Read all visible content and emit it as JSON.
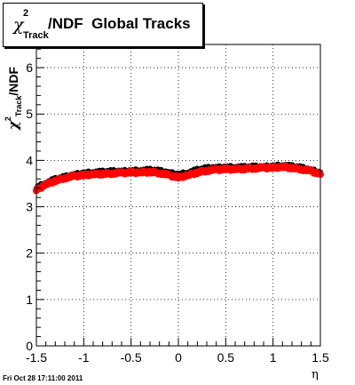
{
  "title": {
    "symbol": "χ",
    "sup": "2",
    "sub": "Track",
    "text": "/NDF  Global Tracks"
  },
  "ylabel": {
    "symbol": "χ",
    "sup": "2",
    "sub": "Track",
    "text": "/NDF"
  },
  "xlabel": "η",
  "timestamp": "Fri Oct 28 17:11:00 2011",
  "colors": {
    "series_red": "#ff0000",
    "series_black": "#000000",
    "grid": "#000000"
  },
  "chart_data": {
    "type": "scatter",
    "title": "χ²Track/NDF  Global Tracks",
    "xlabel": "η",
    "ylabel": "χ²Track/NDF",
    "xlim": [
      -1.5,
      1.5
    ],
    "ylim": [
      0,
      6.5
    ],
    "grid": true,
    "x_ticks": [
      -1.5,
      -1,
      -0.5,
      0,
      0.5,
      1,
      1.5
    ],
    "x_tick_labels": [
      "-1.5",
      "-1",
      "-0.5",
      "0",
      "0.5",
      "1",
      "1.5"
    ],
    "y_ticks": [
      0,
      1,
      2,
      3,
      4,
      5,
      6
    ],
    "y_tick_labels": [
      "0",
      "1",
      "2",
      "3",
      "4",
      "5",
      "6"
    ],
    "series": [
      {
        "color": "#000000",
        "x": [
          -1.5,
          -1.4,
          -1.3,
          -1.2,
          -1.1,
          -1.0,
          -0.9,
          -0.8,
          -0.7,
          -0.6,
          -0.5,
          -0.4,
          -0.3,
          -0.2,
          -0.1,
          0.0,
          0.1,
          0.2,
          0.3,
          0.4,
          0.5,
          0.6,
          0.7,
          0.8,
          0.9,
          1.0,
          1.1,
          1.2,
          1.3,
          1.4,
          1.5
        ],
        "y": [
          3.42,
          3.52,
          3.6,
          3.65,
          3.7,
          3.73,
          3.75,
          3.76,
          3.77,
          3.77,
          3.78,
          3.79,
          3.8,
          3.78,
          3.74,
          3.7,
          3.74,
          3.8,
          3.84,
          3.85,
          3.86,
          3.86,
          3.86,
          3.87,
          3.87,
          3.88,
          3.9,
          3.88,
          3.85,
          3.8,
          3.74
        ]
      },
      {
        "color": "#ff0000",
        "x": [
          -1.5,
          -1.4,
          -1.3,
          -1.2,
          -1.1,
          -1.0,
          -0.9,
          -0.8,
          -0.7,
          -0.6,
          -0.5,
          -0.4,
          -0.3,
          -0.2,
          -0.1,
          0.0,
          0.1,
          0.2,
          0.3,
          0.4,
          0.5,
          0.6,
          0.7,
          0.8,
          0.9,
          1.0,
          1.1,
          1.2,
          1.3,
          1.4,
          1.5
        ],
        "y": [
          3.36,
          3.48,
          3.56,
          3.62,
          3.66,
          3.68,
          3.7,
          3.71,
          3.72,
          3.73,
          3.74,
          3.74,
          3.75,
          3.73,
          3.68,
          3.63,
          3.68,
          3.74,
          3.78,
          3.8,
          3.81,
          3.81,
          3.82,
          3.83,
          3.84,
          3.84,
          3.86,
          3.84,
          3.81,
          3.77,
          3.7
        ]
      }
    ]
  }
}
